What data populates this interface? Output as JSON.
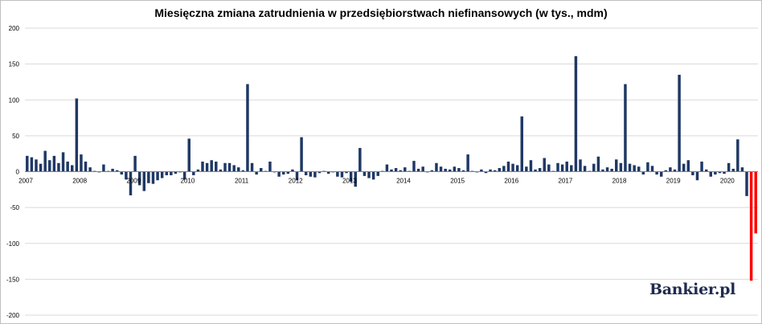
{
  "brand": {
    "logo_text": "Bankier.pl"
  },
  "chart_data": {
    "type": "bar",
    "title": "Miesięczna zmiana zatrudnienia w przedsiębiorstwach niefinansowych (w tys., mdm)",
    "xlabel": "",
    "ylabel": "",
    "ylim": [
      -200,
      200
    ],
    "yticks": [
      -200,
      -150,
      -100,
      -50,
      0,
      50,
      100,
      150,
      200
    ],
    "xtick_labels": [
      "2007",
      "2008",
      "2009",
      "2010",
      "2011",
      "2012",
      "2013",
      "2014",
      "2015",
      "2016",
      "2017",
      "2018",
      "2019",
      "2020"
    ],
    "grid": true,
    "colors": {
      "bar": "#1f3864",
      "highlight": "#ff0000",
      "grid": "#d9d9d9"
    },
    "series": [
      {
        "values": [
          22,
          20,
          17,
          11,
          29,
          16,
          22,
          12,
          27,
          14,
          9,
          102,
          24,
          14,
          6,
          1,
          -1,
          10,
          1,
          4,
          2,
          -4,
          -11,
          -33,
          22,
          -19,
          -27,
          -16,
          -17,
          -12,
          -9,
          -5,
          -5,
          -3,
          -1,
          -11,
          46,
          -5,
          3,
          14,
          12,
          16,
          14,
          3,
          12,
          12,
          9,
          6,
          2,
          122,
          12,
          -4,
          5,
          1,
          14,
          -1,
          -7,
          -4,
          -3,
          3,
          -12,
          48,
          -5,
          -7,
          -8,
          -2,
          1,
          -3,
          -1,
          -7,
          -8,
          -2,
          -14,
          -21,
          33,
          -6,
          -9,
          -11,
          -6,
          1,
          10,
          3,
          5,
          2,
          6,
          1,
          15,
          4,
          7,
          -1,
          2,
          12,
          7,
          4,
          3,
          7,
          5,
          2,
          24,
          1,
          -1,
          3,
          -2,
          3,
          2,
          5,
          8,
          14,
          11,
          9,
          77,
          7,
          16,
          3,
          5,
          19,
          10,
          1,
          12,
          10,
          14,
          9,
          161,
          17,
          8,
          1,
          11,
          21,
          3,
          6,
          4,
          17,
          12,
          122,
          11,
          9,
          7,
          -4,
          13,
          8,
          -4,
          -7,
          2,
          6,
          3,
          135,
          11,
          16,
          -5,
          -12,
          14,
          3,
          -7,
          -4,
          -2,
          -3,
          12,
          4,
          45,
          6,
          -34,
          -152,
          -86
        ],
        "highlight_last": 2
      }
    ]
  }
}
